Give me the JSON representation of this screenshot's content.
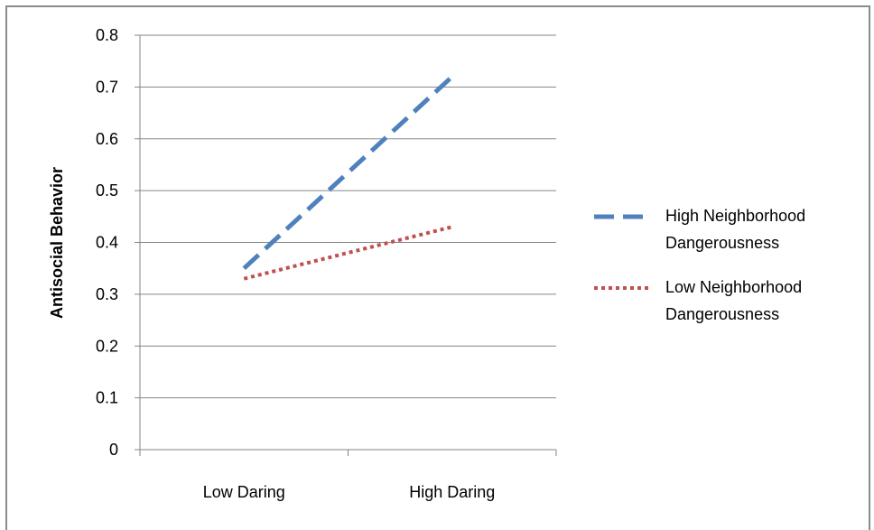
{
  "chart_data": {
    "type": "line",
    "title": "",
    "xlabel": "",
    "ylabel": "Antisocial Behavior",
    "categories": [
      "Low Daring",
      "High Daring"
    ],
    "ylim": [
      0,
      0.8
    ],
    "yticks": [
      "0",
      "0.1",
      "0.2",
      "0.3",
      "0.4",
      "0.5",
      "0.6",
      "0.7",
      "0.8"
    ],
    "grid": true,
    "legend_position": "right",
    "series": [
      {
        "name_lines": [
          "High Neighborhood",
          "Dangerousness"
        ],
        "values": [
          0.35,
          0.72
        ],
        "color": "#4f81bd",
        "style": "dashed"
      },
      {
        "name_lines": [
          "Low Neighborhood",
          "Dangerousness"
        ],
        "values": [
          0.33,
          0.43
        ],
        "color": "#c0504d",
        "style": "dotted"
      }
    ]
  }
}
